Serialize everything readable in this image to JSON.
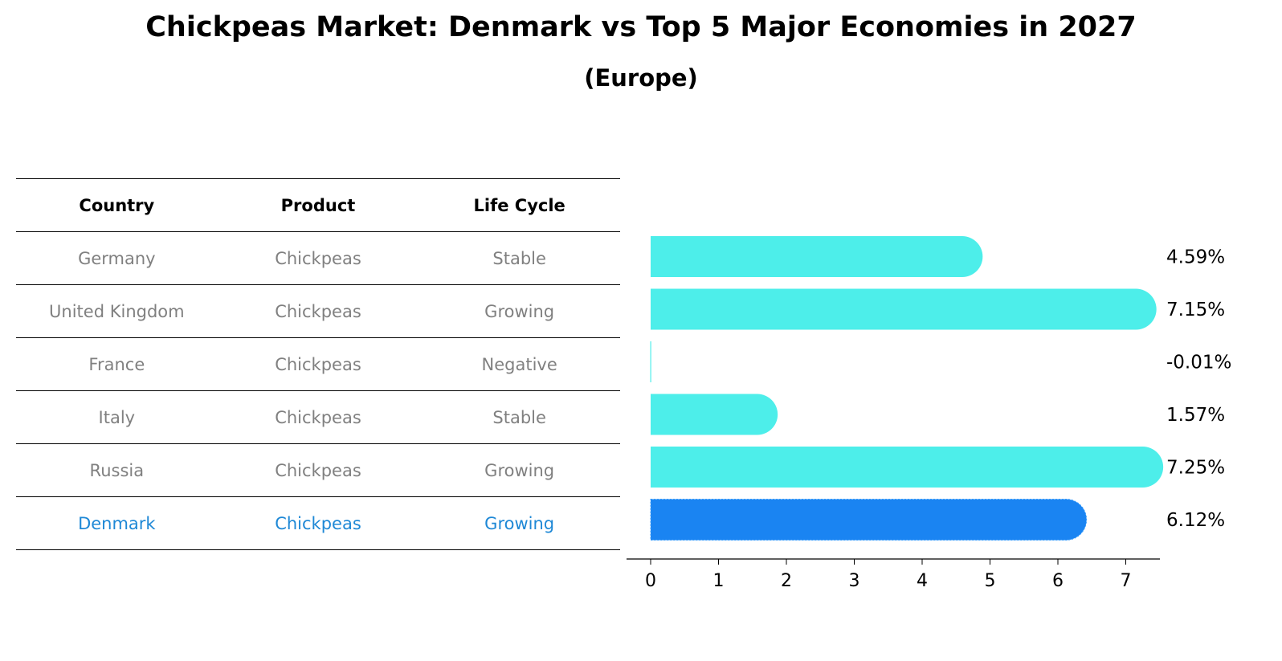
{
  "title": "Chickpeas Market: Denmark vs Top 5 Major Economies in 2027",
  "subtitle": "(Europe)",
  "colors": {
    "bar": "#4deeea",
    "highlight_bar": "#1a84f2",
    "highlight_text": "#1e88d6",
    "muted_text": "#808080"
  },
  "table": {
    "headers": [
      "Country",
      "Product",
      "Life Cycle"
    ],
    "rows": [
      [
        "Germany",
        "Chickpeas",
        "Stable"
      ],
      [
        "United Kingdom",
        "Chickpeas",
        "Growing"
      ],
      [
        "France",
        "Chickpeas",
        "Negative"
      ],
      [
        "Italy",
        "Chickpeas",
        "Stable"
      ],
      [
        "Russia",
        "Chickpeas",
        "Growing"
      ],
      [
        "Denmark",
        "Chickpeas",
        "Growing"
      ]
    ]
  },
  "chart_data": {
    "type": "bar",
    "orientation": "horizontal",
    "categories": [
      "Germany",
      "United Kingdom",
      "France",
      "Italy",
      "Russia",
      "Denmark"
    ],
    "values": [
      4.59,
      7.15,
      -0.01,
      1.57,
      7.25,
      6.12
    ],
    "value_labels": [
      "4.59%",
      "7.15%",
      "-0.01%",
      "1.57%",
      "7.25%",
      "6.12%"
    ],
    "highlight": "Denmark",
    "xticks": [
      0,
      1,
      2,
      3,
      4,
      5,
      6,
      7
    ],
    "xlim": [
      -0.38,
      7.6
    ]
  }
}
